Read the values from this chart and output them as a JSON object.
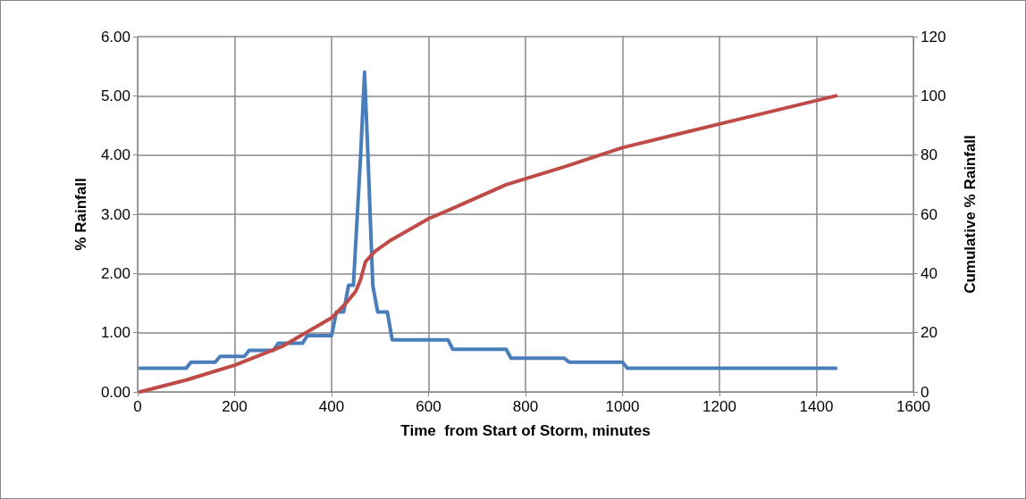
{
  "chart_data": {
    "type": "line",
    "xlabel": "Time  from Start of Storm, minutes",
    "ylabel": "% Rainfall",
    "y2label": "Cumulative % Rainfall",
    "xlim": [
      0,
      1600
    ],
    "xticks": [
      0,
      200,
      400,
      600,
      800,
      1000,
      1200,
      1400,
      1600
    ],
    "ylim": [
      0,
      6
    ],
    "yticks": [
      {
        "value": 0,
        "label": "0.00"
      },
      {
        "value": 1,
        "label": "1.00"
      },
      {
        "value": 2,
        "label": "2.00"
      },
      {
        "value": 3,
        "label": "3.00"
      },
      {
        "value": 4,
        "label": "4.00"
      },
      {
        "value": 5,
        "label": "5.00"
      },
      {
        "value": 6,
        "label": "6.00"
      }
    ],
    "y2lim": [
      0,
      120
    ],
    "y2ticks": [
      0,
      20,
      40,
      60,
      80,
      100,
      120
    ],
    "grid": true,
    "marker": "none",
    "line_style": "solid",
    "series": [
      {
        "color": "#4a7ebb",
        "x": [
          5,
          100,
          110,
          160,
          170,
          220,
          230,
          280,
          290,
          340,
          350,
          400,
          410,
          425,
          435,
          445,
          460,
          468,
          475,
          485,
          495,
          515,
          525,
          640,
          650,
          760,
          770,
          880,
          890,
          1000,
          1010,
          1440
        ],
        "values": [
          0.4,
          0.4,
          0.5,
          0.5,
          0.6,
          0.6,
          0.7,
          0.7,
          0.82,
          0.82,
          0.95,
          0.95,
          1.35,
          1.35,
          1.8,
          1.8,
          4.0,
          5.4,
          4.0,
          1.8,
          1.35,
          1.35,
          0.88,
          0.88,
          0.72,
          0.72,
          0.57,
          0.57,
          0.5,
          0.5,
          0.4,
          0.4
        ]
      },
      {
        "color": "#be4b48",
        "axis": "y2",
        "x": [
          5,
          100,
          200,
          300,
          400,
          430,
          450,
          460,
          470,
          490,
          520,
          600,
          650,
          760,
          880,
          1000,
          1200,
          1440
        ],
        "values": [
          0,
          4,
          9,
          15.5,
          25,
          30,
          34,
          38,
          44,
          47.5,
          51,
          58.5,
          62,
          70,
          76,
          82.5,
          90.5,
          100
        ]
      }
    ]
  }
}
